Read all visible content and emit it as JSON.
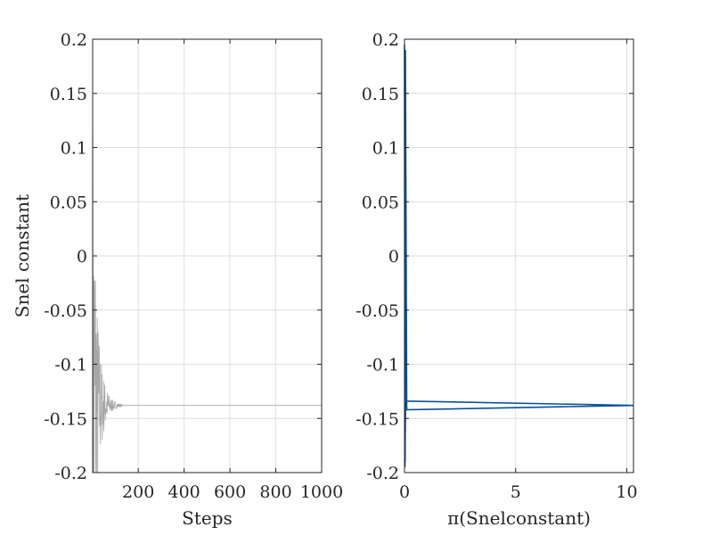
{
  "chart_data": [
    {
      "type": "line",
      "subplot": "left",
      "title": "",
      "xlabel": "Steps",
      "ylabel": "Snel constant",
      "xlim": [
        1,
        1000
      ],
      "ylim": [
        -0.2,
        0.2
      ],
      "xticks": [
        200,
        400,
        600,
        800,
        1000
      ],
      "xtick_labels": [
        "200",
        "400",
        "600",
        "800",
        "1000"
      ],
      "yticks": [
        0.2,
        0.15,
        0.1,
        0.05,
        0,
        -0.05,
        -0.1,
        -0.15,
        -0.2
      ],
      "ytick_labels": [
        "0.2",
        "0.15",
        "0.1",
        "0.05",
        "0",
        "-0.05",
        "-0.1",
        "-0.15",
        "-0.2"
      ],
      "grid": true,
      "series": [
        {
          "color": "#a6a6a6",
          "description_points": {
            "x": [
              1,
              2,
              3,
              4,
              5,
              6,
              8,
              10,
              12,
              15,
              18,
              22,
              26,
              30,
              35,
              40,
              50,
              60,
              70,
              80,
              90,
              100,
              150,
              200,
              400,
              600,
              800,
              1000
            ],
            "y": [
              0.1,
              -0.19,
              0.05,
              -0.2,
              0.02,
              -0.18,
              0.04,
              -0.17,
              -0.1,
              -0.16,
              -0.12,
              -0.155,
              -0.13,
              -0.15,
              -0.135,
              -0.145,
              -0.14,
              -0.1385,
              -0.1378,
              -0.1383,
              -0.138,
              -0.1381,
              -0.138,
              -0.138,
              -0.138,
              -0.138,
              -0.138,
              -0.138
            ]
          }
        }
      ]
    },
    {
      "type": "line",
      "subplot": "right",
      "title": "",
      "xlabel": "π(Snelconstant)",
      "ylabel": "",
      "xlim": [
        0,
        10.3
      ],
      "ylim": [
        -0.2,
        0.2
      ],
      "xticks": [
        0,
        5,
        10
      ],
      "xtick_labels": [
        "0",
        "5",
        "10"
      ],
      "yticks": [
        0.2,
        0.15,
        0.1,
        0.05,
        0,
        -0.05,
        -0.1,
        -0.15,
        -0.2
      ],
      "ytick_labels": [
        "0.2",
        "0.15",
        "0.1",
        "0.05",
        "0",
        "-0.05",
        "-0.1",
        "-0.15",
        "-0.2"
      ],
      "grid": true,
      "series": [
        {
          "color": "#0a4f9a",
          "x": [
            0,
            0.02,
            0.05,
            10.3,
            0.1,
            0.04,
            0.03
          ],
          "y": [
            0.195,
            -0.195,
            -0.134,
            -0.138,
            -0.142,
            0.19,
            -0.19
          ]
        }
      ]
    }
  ]
}
